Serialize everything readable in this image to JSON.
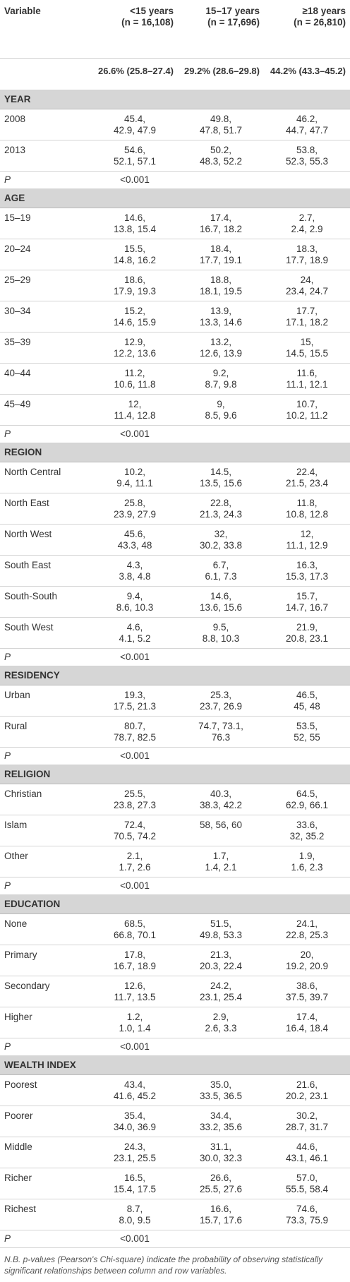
{
  "header": {
    "variable": "Variable",
    "columns": [
      {
        "label": "<15 years",
        "n": "(n = 16,108)"
      },
      {
        "label": "15–17 years",
        "n": "(n = 17,696)"
      },
      {
        "label": "≥18 years",
        "n": "(n = 26,810)"
      }
    ],
    "overall": [
      "26.6% (25.8–27.4)",
      "29.2% (28.6–29.8)",
      "44.2% (43.3–45.2)"
    ]
  },
  "sections": [
    {
      "title": "YEAR",
      "rows": [
        {
          "label": "2008",
          "cells": [
            [
              "45.4,",
              "42.9, 47.9"
            ],
            [
              "49.8,",
              "47.8, 51.7"
            ],
            [
              "46.2,",
              "44.7, 47.7"
            ]
          ]
        },
        {
          "label": "2013",
          "cells": [
            [
              "54.6,",
              "52.1, 57.1"
            ],
            [
              "50.2,",
              "48.3, 52.2"
            ],
            [
              "53.8,",
              "52.3, 55.3"
            ]
          ]
        }
      ],
      "p": {
        "label": "P",
        "value": "<0.001"
      }
    },
    {
      "title": "AGE",
      "rows": [
        {
          "label": "15–19",
          "cells": [
            [
              "14.6,",
              "13.8, 15.4"
            ],
            [
              "17.4,",
              "16.7, 18.2"
            ],
            [
              "2.7,",
              "2.4, 2.9"
            ]
          ]
        },
        {
          "label": "20–24",
          "cells": [
            [
              "15.5,",
              "14.8, 16.2"
            ],
            [
              "18.4,",
              "17.7, 19.1"
            ],
            [
              "18.3,",
              "17.7, 18.9"
            ]
          ]
        },
        {
          "label": "25–29",
          "cells": [
            [
              "18.6,",
              "17.9, 19.3"
            ],
            [
              "18.8,",
              "18.1, 19.5"
            ],
            [
              "24,",
              "23.4, 24.7"
            ]
          ]
        },
        {
          "label": "30–34",
          "cells": [
            [
              "15.2,",
              "14.6, 15.9"
            ],
            [
              "13.9,",
              "13.3, 14.6"
            ],
            [
              "17.7,",
              "17.1, 18.2"
            ]
          ]
        },
        {
          "label": "35–39",
          "cells": [
            [
              "12.9,",
              "12.2, 13.6"
            ],
            [
              "13.2,",
              "12.6, 13.9"
            ],
            [
              "15,",
              "14.5, 15.5"
            ]
          ]
        },
        {
          "label": "40–44",
          "cells": [
            [
              "11.2,",
              "10.6, 11.8"
            ],
            [
              "9.2,",
              "8.7, 9.8"
            ],
            [
              "11.6,",
              "11.1, 12.1"
            ]
          ]
        },
        {
          "label": "45–49",
          "cells": [
            [
              "12,",
              "11.4, 12.8"
            ],
            [
              "9,",
              "8.5, 9.6"
            ],
            [
              "10.7,",
              "10.2, 11.2"
            ]
          ]
        }
      ],
      "p": {
        "label": "P",
        "value": "<0.001"
      }
    },
    {
      "title": "REGION",
      "rows": [
        {
          "label": "North Central",
          "cells": [
            [
              "10.2,",
              "9.4, 11.1"
            ],
            [
              "14.5,",
              "13.5, 15.6"
            ],
            [
              "22.4,",
              "21.5, 23.4"
            ]
          ]
        },
        {
          "label": "North East",
          "cells": [
            [
              "25.8,",
              "23.9, 27.9"
            ],
            [
              "22.8,",
              "21.3, 24.3"
            ],
            [
              "11.8,",
              "10.8, 12.8"
            ]
          ]
        },
        {
          "label": "North West",
          "cells": [
            [
              "45.6,",
              "43.3, 48"
            ],
            [
              "32,",
              "30.2, 33.8"
            ],
            [
              "12,",
              "11.1, 12.9"
            ]
          ]
        },
        {
          "label": "South East",
          "cells": [
            [
              "4.3,",
              "3.8, 4.8"
            ],
            [
              "6.7,",
              "6.1, 7.3"
            ],
            [
              "16.3,",
              "15.3, 17.3"
            ]
          ]
        },
        {
          "label": "South-South",
          "cells": [
            [
              "9.4,",
              "8.6, 10.3"
            ],
            [
              "14.6,",
              "13.6, 15.6"
            ],
            [
              "15.7,",
              "14.7, 16.7"
            ]
          ]
        },
        {
          "label": "South West",
          "cells": [
            [
              "4.6,",
              "4.1, 5.2"
            ],
            [
              "9.5,",
              "8.8, 10.3"
            ],
            [
              "21.9,",
              "20.8, 23.1"
            ]
          ]
        }
      ],
      "p": {
        "label": "P",
        "value": "<0.001"
      }
    },
    {
      "title": "RESIDENCY",
      "rows": [
        {
          "label": "Urban",
          "cells": [
            [
              "19.3,",
              "17.5, 21.3"
            ],
            [
              "25.3,",
              "23.7, 26.9"
            ],
            [
              "46.5,",
              "45, 48"
            ]
          ]
        },
        {
          "label": "Rural",
          "cells": [
            [
              "80.7,",
              "78.7, 82.5"
            ],
            [
              "74.7, 73.1,",
              "76.3"
            ],
            [
              "53.5,",
              "52, 55"
            ]
          ]
        }
      ],
      "p": {
        "label": "P",
        "value": "<0.001"
      }
    },
    {
      "title": "RELIGION",
      "rows": [
        {
          "label": "Christian",
          "cells": [
            [
              "25.5,",
              "23.8, 27.3"
            ],
            [
              "40.3,",
              "38.3, 42.2"
            ],
            [
              "64.5,",
              "62.9, 66.1"
            ]
          ]
        },
        {
          "label": "Islam",
          "cells": [
            [
              "72.4,",
              "70.5, 74.2"
            ],
            [
              "58, 56, 60"
            ],
            [
              "33.6,",
              "32, 35.2"
            ]
          ]
        },
        {
          "label": "Other",
          "cells": [
            [
              "2.1,",
              "1.7, 2.6"
            ],
            [
              "1.7,",
              "1.4, 2.1"
            ],
            [
              "1.9,",
              "1.6, 2.3"
            ]
          ]
        }
      ],
      "p": {
        "label": "P",
        "value": "<0.001"
      }
    },
    {
      "title": "EDUCATION",
      "rows": [
        {
          "label": "None",
          "cells": [
            [
              "68.5,",
              "66.8, 70.1"
            ],
            [
              "51.5,",
              "49.8, 53.3"
            ],
            [
              "24.1,",
              "22.8, 25.3"
            ]
          ]
        },
        {
          "label": "Primary",
          "cells": [
            [
              "17.8,",
              "16.7, 18.9"
            ],
            [
              "21.3,",
              "20.3, 22.4"
            ],
            [
              "20,",
              "19.2, 20.9"
            ]
          ]
        },
        {
          "label": "Secondary",
          "cells": [
            [
              "12.6,",
              "11.7, 13.5"
            ],
            [
              "24.2,",
              "23.1, 25.4"
            ],
            [
              "38.6,",
              "37.5, 39.7"
            ]
          ]
        },
        {
          "label": "Higher",
          "cells": [
            [
              "1.2,",
              "1.0, 1.4"
            ],
            [
              "2.9,",
              "2.6, 3.3"
            ],
            [
              "17.4,",
              "16.4, 18.4"
            ]
          ]
        }
      ],
      "p": {
        "label": "P",
        "value": "<0.001"
      }
    },
    {
      "title": "WEALTH INDEX",
      "rows": [
        {
          "label": "Poorest",
          "cells": [
            [
              "43.4,",
              "41.6, 45.2"
            ],
            [
              "35.0,",
              "33.5, 36.5"
            ],
            [
              "21.6,",
              "20.2, 23.1"
            ]
          ]
        },
        {
          "label": "Poorer",
          "cells": [
            [
              "35.4,",
              "34.0, 36.9"
            ],
            [
              "34.4,",
              "33.2, 35.6"
            ],
            [
              "30.2,",
              "28.7, 31.7"
            ]
          ]
        },
        {
          "label": "Middle",
          "cells": [
            [
              "24.3,",
              "23.1, 25.5"
            ],
            [
              "31.1,",
              "30.0, 32.3"
            ],
            [
              "44.6,",
              "43.1, 46.1"
            ]
          ]
        },
        {
          "label": "Richer",
          "cells": [
            [
              "16.5,",
              "15.4, 17.5"
            ],
            [
              "26.6,",
              "25.5, 27.6"
            ],
            [
              "57.0,",
              "55.5, 58.4"
            ]
          ]
        },
        {
          "label": "Richest",
          "cells": [
            [
              "8.7,",
              "8.0, 9.5"
            ],
            [
              "16.6,",
              "15.7, 17.6"
            ],
            [
              "74.6,",
              "73.3, 75.9"
            ]
          ]
        }
      ],
      "p": {
        "label": "P",
        "value": "<0.001"
      }
    }
  ],
  "footnote": "N.B. p-values (Pearson's Chi-square) indicate the probability of observing statistically significant relationships between column and row variables."
}
